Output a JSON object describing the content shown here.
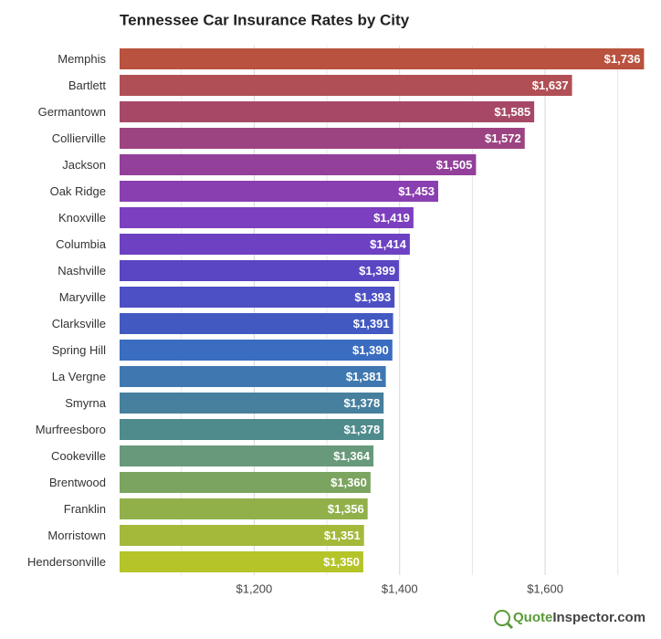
{
  "chart_data": {
    "type": "bar",
    "orientation": "horizontal",
    "title": "Tennessee Car Insurance Rates by City",
    "categories": [
      "Memphis",
      "Bartlett",
      "Germantown",
      "Collierville",
      "Jackson",
      "Oak Ridge",
      "Knoxville",
      "Columbia",
      "Nashville",
      "Maryville",
      "Clarksville",
      "Spring Hill",
      "La Vergne",
      "Smyrna",
      "Murfreesboro",
      "Cookeville",
      "Brentwood",
      "Franklin",
      "Morristown",
      "Hendersonville"
    ],
    "values": [
      1736,
      1637,
      1585,
      1572,
      1505,
      1453,
      1419,
      1414,
      1399,
      1393,
      1391,
      1390,
      1381,
      1378,
      1378,
      1364,
      1360,
      1356,
      1351,
      1350
    ],
    "value_labels": [
      "$1,736",
      "$1,637",
      "$1,585",
      "$1,572",
      "$1,505",
      "$1,453",
      "$1,419",
      "$1,414",
      "$1,399",
      "$1,393",
      "$1,391",
      "$1,390",
      "$1,381",
      "$1,378",
      "$1,378",
      "$1,364",
      "$1,360",
      "$1,356",
      "$1,351",
      "$1,350"
    ],
    "colors": [
      "#b9523e",
      "#b04f55",
      "#a64866",
      "#9c4481",
      "#92409a",
      "#8a3fb0",
      "#7b3fbf",
      "#6d41c2",
      "#5a45c2",
      "#4d4fc4",
      "#4259c2",
      "#3a6cc0",
      "#3f78b0",
      "#46809e",
      "#4f8a8c",
      "#68997a",
      "#7ba460",
      "#91b04a",
      "#a4b93a",
      "#b5c428"
    ],
    "xlim": [
      1015,
      1743
    ],
    "xticks": [
      {
        "value": 1200,
        "label": "$1,200"
      },
      {
        "value": 1400,
        "label": "$1,400"
      },
      {
        "value": 1600,
        "label": "$1,600"
      }
    ],
    "minor_xticks": [
      1100,
      1300,
      1500,
      1700
    ],
    "grid": true
  },
  "footer": {
    "brand_first": "Quote",
    "brand_second": "Inspector.com"
  }
}
